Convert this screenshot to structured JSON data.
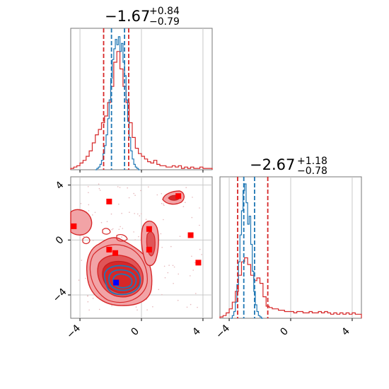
{
  "chart_data": {
    "type": "corner",
    "parameters": [
      "",
      ""
    ],
    "colors": {
      "primary": "#d62728",
      "secondary": "#1f77b4",
      "grid": "#c8c8c8",
      "fill_light": "#f2a3a6",
      "fill_dark": "#d62728"
    },
    "panels": [
      {
        "id": "hist-x",
        "type": "histogram",
        "xlim": [
          -4.6,
          4.6
        ],
        "title": {
          "main": "−1.67",
          "upper": "+0.84",
          "lower": "−0.79"
        },
        "quantiles_red": [
          -2.46,
          -0.83
        ],
        "quantiles_blue": [
          -1.95,
          -1.1
        ],
        "series": [
          {
            "name": "",
            "color": "#d62728",
            "x": [
              -4.6,
              -4.4,
              -4.2,
              -4.0,
              -3.8,
              -3.6,
              -3.4,
              -3.2,
              -3.0,
              -2.8,
              -2.6,
              -2.4,
              -2.2,
              -2.0,
              -1.8,
              -1.6,
              -1.4,
              -1.2,
              -1.0,
              -0.8,
              -0.6,
              -0.4,
              -0.2,
              0.0,
              0.2,
              0.4,
              0.6,
              0.8,
              1.0,
              1.2,
              1.4,
              1.6,
              1.8,
              2.0,
              2.2,
              2.4,
              2.6,
              2.8,
              3.0,
              3.2,
              3.4,
              3.6,
              3.8,
              4.0,
              4.2,
              4.4
            ],
            "values": [
              0.01,
              0.02,
              0.03,
              0.05,
              0.07,
              0.1,
              0.14,
              0.2,
              0.26,
              0.3,
              0.35,
              0.4,
              0.5,
              0.62,
              0.8,
              0.88,
              0.75,
              0.62,
              0.5,
              0.35,
              0.24,
              0.16,
              0.12,
              0.1,
              0.08,
              0.06,
              0.05,
              0.07,
              0.04,
              0.03,
              0.03,
              0.02,
              0.02,
              0.03,
              0.02,
              0.03,
              0.01,
              0.02,
              0.01,
              0.02,
              0.01,
              0.01,
              0.02,
              0.01,
              0.01,
              0.01
            ]
          },
          {
            "name": "",
            "color": "#1f77b4",
            "x": [
              -3.0,
              -2.9,
              -2.8,
              -2.7,
              -2.6,
              -2.5,
              -2.4,
              -2.3,
              -2.2,
              -2.1,
              -2.0,
              -1.9,
              -1.8,
              -1.7,
              -1.6,
              -1.5,
              -1.4,
              -1.3,
              -1.2,
              -1.1,
              -1.0,
              -0.9,
              -0.8,
              -0.7,
              -0.6,
              -0.5,
              -0.4,
              -0.3,
              -0.2
            ],
            "values": [
              0.0,
              0.01,
              0.02,
              0.04,
              0.07,
              0.12,
              0.18,
              0.26,
              0.38,
              0.52,
              0.68,
              0.82,
              0.9,
              0.97,
              0.93,
              0.99,
              0.88,
              0.94,
              0.8,
              0.7,
              0.52,
              0.36,
              0.24,
              0.14,
              0.08,
              0.04,
              0.02,
              0.01,
              0.0
            ]
          }
        ]
      },
      {
        "id": "hist-y",
        "type": "histogram",
        "xlim": [
          -4.6,
          4.6
        ],
        "title": {
          "main": "−2.67",
          "upper": "+1.18",
          "lower": "−0.78"
        },
        "quantiles_red": [
          -3.45,
          -1.49
        ],
        "quantiles_blue": [
          -3.05,
          -2.35
        ],
        "series": [
          {
            "name": "",
            "color": "#d62728",
            "x": [
              -4.6,
              -4.4,
              -4.2,
              -4.0,
              -3.8,
              -3.6,
              -3.4,
              -3.2,
              -3.0,
              -2.8,
              -2.6,
              -2.4,
              -2.2,
              -2.0,
              -1.8,
              -1.6,
              -1.4,
              -1.2,
              -1.0,
              -0.8,
              -0.6,
              -0.4,
              -0.2,
              0.0,
              0.2,
              0.4,
              0.6,
              0.8,
              1.0,
              1.2,
              1.4,
              1.6,
              1.8,
              2.0,
              2.2,
              2.4,
              2.6,
              2.8,
              3.0,
              3.2,
              3.4,
              3.6,
              3.8,
              4.0,
              4.2,
              4.4
            ],
            "values": [
              0.01,
              0.02,
              0.04,
              0.07,
              0.12,
              0.2,
              0.32,
              0.42,
              0.45,
              0.4,
              0.32,
              0.28,
              0.3,
              0.26,
              0.16,
              0.09,
              0.08,
              0.07,
              0.07,
              0.06,
              0.06,
              0.05,
              0.05,
              0.05,
              0.04,
              0.05,
              0.05,
              0.04,
              0.04,
              0.05,
              0.04,
              0.04,
              0.05,
              0.04,
              0.05,
              0.04,
              0.03,
              0.04,
              0.03,
              0.04,
              0.03,
              0.04,
              0.03,
              0.04,
              0.03,
              0.03
            ]
          },
          {
            "name": "",
            "color": "#1f77b4",
            "x": [
              -3.9,
              -3.8,
              -3.7,
              -3.6,
              -3.5,
              -3.4,
              -3.3,
              -3.2,
              -3.1,
              -3.0,
              -2.9,
              -2.8,
              -2.7,
              -2.6,
              -2.5,
              -2.4,
              -2.3,
              -2.2,
              -2.1,
              -2.0,
              -1.9
            ],
            "values": [
              0.0,
              0.02,
              0.05,
              0.12,
              0.25,
              0.42,
              0.62,
              0.8,
              0.95,
              1.0,
              0.86,
              0.7,
              0.76,
              0.55,
              0.35,
              0.2,
              0.1,
              0.05,
              0.02,
              0.01,
              0.0
            ]
          }
        ]
      },
      {
        "id": "joint",
        "type": "contour",
        "xlim": [
          -4.6,
          4.6
        ],
        "ylim": [
          -5.7,
          4.6
        ],
        "blue_marker": [
          -1.65,
          -3.1
        ],
        "red_markers": [
          [
            -2.1,
            2.8
          ],
          [
            2.4,
            3.2
          ],
          [
            -4.4,
            1.0
          ],
          [
            0.5,
            0.8
          ],
          [
            3.2,
            0.35
          ],
          [
            -2.1,
            -0.7
          ],
          [
            -1.7,
            -0.95
          ],
          [
            0.5,
            -0.7
          ],
          [
            3.7,
            -1.65
          ]
        ]
      }
    ],
    "ticks": {
      "hist_x_bottom": [
        -4,
        0,
        4
      ],
      "joint_x": [
        -4,
        0,
        4
      ],
      "joint_y": [
        -4,
        0,
        4
      ],
      "hist_y_x": [
        -4,
        0,
        4
      ]
    },
    "tick_labels": {
      "joint_x": [
        "−4",
        "0",
        "4"
      ],
      "joint_y": [
        "−4",
        "0",
        "4"
      ],
      "hist_y_x": [
        "−4",
        "0",
        "4"
      ]
    },
    "grid": true
  }
}
